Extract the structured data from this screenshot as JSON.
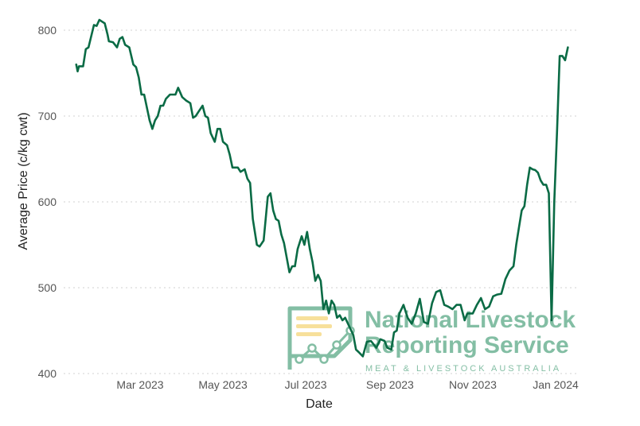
{
  "chart_data": {
    "type": "line",
    "title": "",
    "xlabel": "Date",
    "ylabel": "Average Price (c/kg cwt)",
    "ylim": [
      400,
      820
    ],
    "y_ticks": [
      400,
      500,
      600,
      700,
      800
    ],
    "x_ticks": [
      {
        "date": "2023-03-01",
        "label": "Mar 2023"
      },
      {
        "date": "2023-05-01",
        "label": "May 2023"
      },
      {
        "date": "2023-07-01",
        "label": "Jul 2023"
      },
      {
        "date": "2023-09-01",
        "label": "Sep 2023"
      },
      {
        "date": "2023-11-01",
        "label": "Nov 2023"
      },
      {
        "date": "2024-01-01",
        "label": "Jan 2024"
      }
    ],
    "xlim": [
      "2023-01-10",
      "2024-01-15"
    ],
    "grid": "horizontal dotted",
    "series_color": "#0a6b45",
    "series": [
      {
        "name": "",
        "x": [
          "2023-01-13",
          "2023-01-14",
          "2023-01-15",
          "2023-01-18",
          "2023-01-20",
          "2023-01-22",
          "2023-01-26",
          "2023-01-28",
          "2023-01-30",
          "2023-02-01",
          "2023-02-03",
          "2023-02-05",
          "2023-02-06",
          "2023-02-09",
          "2023-02-12",
          "2023-02-14",
          "2023-02-16",
          "2023-02-18",
          "2023-02-21",
          "2023-02-24",
          "2023-02-26",
          "2023-02-28",
          "2023-03-02",
          "2023-03-04",
          "2023-03-08",
          "2023-03-10",
          "2023-03-12",
          "2023-03-14",
          "2023-03-16",
          "2023-03-18",
          "2023-03-20",
          "2023-03-23",
          "2023-03-27",
          "2023-03-29",
          "2023-04-01",
          "2023-04-04",
          "2023-04-07",
          "2023-04-09",
          "2023-04-11",
          "2023-04-13",
          "2023-04-16",
          "2023-04-18",
          "2023-04-20",
          "2023-04-22",
          "2023-04-25",
          "2023-04-27",
          "2023-04-29",
          "2023-05-01",
          "2023-05-04",
          "2023-05-06",
          "2023-05-08",
          "2023-05-10",
          "2023-05-12",
          "2023-05-14",
          "2023-05-17",
          "2023-05-19",
          "2023-05-21",
          "2023-05-23",
          "2023-05-26",
          "2023-05-28",
          "2023-05-31",
          "2023-06-03",
          "2023-06-05",
          "2023-06-07",
          "2023-06-09",
          "2023-06-11",
          "2023-06-13",
          "2023-06-15",
          "2023-06-17",
          "2023-06-19",
          "2023-06-21",
          "2023-06-23",
          "2023-06-25",
          "2023-06-28",
          "2023-06-30",
          "2023-07-02",
          "2023-07-04",
          "2023-07-06",
          "2023-07-08",
          "2023-07-10",
          "2023-07-12",
          "2023-07-14",
          "2023-07-16",
          "2023-07-18",
          "2023-07-20",
          "2023-07-22",
          "2023-07-24",
          "2023-07-26",
          "2023-07-28",
          "2023-07-30",
          "2023-08-02",
          "2023-08-05",
          "2023-08-07",
          "2023-08-09",
          "2023-08-12",
          "2023-08-15",
          "2023-08-18",
          "2023-08-22",
          "2023-08-25",
          "2023-08-28",
          "2023-08-30",
          "2023-09-02",
          "2023-09-04",
          "2023-09-06",
          "2023-09-08",
          "2023-09-11",
          "2023-09-14",
          "2023-09-17",
          "2023-09-20",
          "2023-09-23",
          "2023-09-26",
          "2023-09-29",
          "2023-10-02",
          "2023-10-05",
          "2023-10-08",
          "2023-10-11",
          "2023-10-14",
          "2023-10-17",
          "2023-10-20",
          "2023-10-23",
          "2023-10-26",
          "2023-10-28",
          "2023-11-01",
          "2023-11-04",
          "2023-11-07",
          "2023-11-10",
          "2023-11-13",
          "2023-11-16",
          "2023-11-19",
          "2023-11-22",
          "2023-11-25",
          "2023-11-28",
          "2023-12-01",
          "2023-12-03",
          "2023-12-05",
          "2023-12-07",
          "2023-12-09",
          "2023-12-11",
          "2023-12-13",
          "2023-12-15",
          "2023-12-17",
          "2023-12-19",
          "2023-12-21",
          "2023-12-23",
          "2023-12-25",
          "2023-12-27",
          "2023-12-29",
          "2023-12-31",
          "2024-01-02",
          "2024-01-04",
          "2024-01-06",
          "2024-01-08",
          "2024-01-10"
        ],
        "y": [
          760,
          752,
          758,
          758,
          778,
          780,
          806,
          805,
          812,
          810,
          808,
          795,
          787,
          786,
          780,
          790,
          792,
          783,
          780,
          760,
          757,
          745,
          725,
          725,
          695,
          685,
          695,
          700,
          712,
          712,
          720,
          725,
          725,
          733,
          722,
          718,
          715,
          698,
          700,
          705,
          712,
          700,
          698,
          680,
          670,
          685,
          685,
          670,
          666,
          655,
          640,
          640,
          640,
          635,
          638,
          627,
          622,
          580,
          550,
          548,
          555,
          606,
          610,
          590,
          580,
          578,
          562,
          552,
          535,
          518,
          525,
          525,
          545,
          560,
          550,
          565,
          545,
          530,
          508,
          515,
          508,
          475,
          485,
          470,
          485,
          480,
          465,
          468,
          462,
          465,
          455,
          445,
          428,
          425,
          420,
          437,
          438,
          430,
          440,
          438,
          430,
          428,
          448,
          450,
          470,
          480,
          465,
          458,
          470,
          487,
          460,
          458,
          482,
          495,
          497,
          480,
          478,
          475,
          480,
          480,
          462,
          470,
          470,
          480,
          488,
          475,
          478,
          490,
          492,
          493,
          510,
          520,
          525,
          550,
          570,
          590,
          595,
          620,
          640,
          638,
          637,
          634,
          625,
          620,
          620,
          610,
          462,
          600,
          680,
          770,
          770,
          765,
          780
        ],
        "values_note": ""
      }
    ]
  },
  "watermark": {
    "title_line1": "National Livestock",
    "title_line2": "Reporting Service",
    "subtitle": "MEAT & LIVESTOCK AUSTRALIA"
  }
}
